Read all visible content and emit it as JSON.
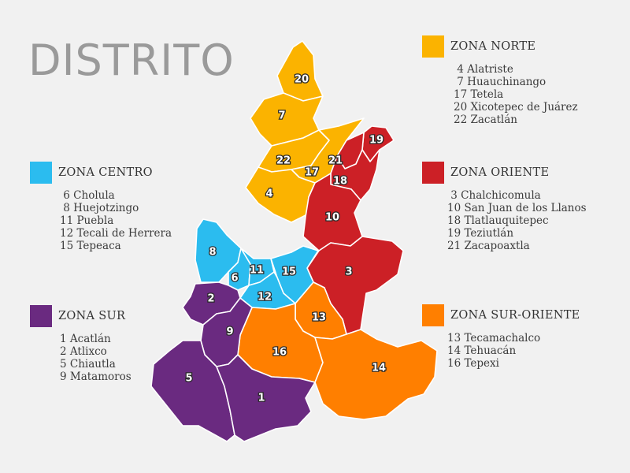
{
  "title": "DISTRITO",
  "colors": {
    "norte": "#fbb300",
    "centro": "#2bbcef",
    "oriente": "#cc2026",
    "sur": "#6a2a80",
    "sur_oriente": "#ff7f00"
  },
  "zones": {
    "norte": {
      "name": "ZONA NORTE",
      "items": [
        " 4 Alatriste",
        " 7 Huauchinango",
        "17 Tetela",
        "20 Xicotepec de Juárez",
        "22 Zacatlán"
      ]
    },
    "centro": {
      "name": "ZONA CENTRO",
      "items": [
        " 6 Cholula",
        " 8 Huejotzingo",
        "11 Puebla",
        "12 Tecali de Herrera",
        "15 Tepeaca"
      ]
    },
    "oriente": {
      "name": "ZONA ORIENTE",
      "items": [
        " 3 Chalchicomula",
        "10 San Juan de los Llanos",
        "18 Tlatlauquitepec",
        "19 Teziutlán",
        "21 Zacapoaxtla"
      ]
    },
    "sur": {
      "name": "ZONA SUR",
      "items": [
        "1 Acatlán",
        "2 Atlixco",
        "5 Chiautla",
        "9 Matamoros"
      ]
    },
    "sur_oriente": {
      "name": "ZONA SUR-ORIENTE",
      "items": [
        "13 Tecamachalco",
        "14 Tehuacán",
        "16 Tepexi"
      ]
    }
  },
  "map_labels": {
    "d1": "1",
    "d2": "2",
    "d3": "3",
    "d4": "4",
    "d5": "5",
    "d6": "6",
    "d7": "7",
    "d8": "8",
    "d9": "9",
    "d10": "10",
    "d11": "11",
    "d12": "12",
    "d13": "13",
    "d14": "14",
    "d15": "15",
    "d16": "16",
    "d17": "17",
    "d18": "18",
    "d19": "19",
    "d20": "20",
    "d21": "21",
    "d22": "22"
  }
}
